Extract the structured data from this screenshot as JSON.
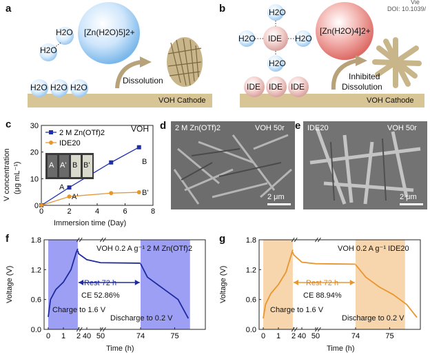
{
  "header": {
    "doi_fragment": "DOI: 10.1039/",
    "view_fragment": "Vie"
  },
  "panel_a": {
    "letter": "a",
    "molecules": [
      "H2O",
      "H2O",
      "H2O",
      "H2O",
      "H2O"
    ],
    "ion_label": "[Zn(H2O)5]2+",
    "process": "Dissolution",
    "substrate": "VOH Cathode"
  },
  "panel_b": {
    "letter": "b",
    "molecules": [
      "H2O",
      "H2O",
      "H2O",
      "H2O"
    ],
    "ide_center": "IDE",
    "ide_bottom": [
      "IDE",
      "IDE",
      "IDE"
    ],
    "ion_label": "[Zn(H2O)4]2+",
    "process_line1": "Inhibited",
    "process_line2": "Dissolution",
    "substrate": "VOH Cathode"
  },
  "panel_c": {
    "letter": "c",
    "tag": "VOH",
    "ylabel_line1": "V concentration",
    "ylabel_line2": "(μg mL⁻¹)",
    "xlabel": "Immersion time (Day)",
    "vial_labels": [
      "A",
      "A'",
      "B",
      "B'"
    ],
    "point_labels": [
      "A",
      "A'",
      "B",
      "B'"
    ]
  },
  "panel_d": {
    "letter": "d",
    "label_left": "2 M Zn(OTf)2",
    "label_right": "VOH 50r",
    "scale": "2 μm"
  },
  "panel_e": {
    "letter": "e",
    "label_left": "IDE20",
    "label_right": "VOH 50r",
    "scale": "2 μm"
  },
  "panel_f": {
    "letter": "f",
    "title": "VOH 0.2 A g⁻¹ 2 M Zn(OTf)2",
    "rest": "Rest 72 h",
    "ce": "CE 52.86%",
    "charge": "Charge to 1.6 V",
    "discharge": "Discharge to 0.2 V",
    "ylabel": "Voltage (V)",
    "xlabel": "Time (h)"
  },
  "panel_g": {
    "letter": "g",
    "title": "VOH 0.2 A g⁻¹ IDE20",
    "rest": "Rest 72 h",
    "ce": "CE 88.94%",
    "charge": "Charge to 1.6 V",
    "discharge": "Discharge to 0.2 V",
    "ylabel": "Voltage (V)",
    "xlabel": "Time (h)"
  },
  "chart_data": [
    {
      "type": "line",
      "panel": "c",
      "xlabel": "Immersion time (Day)",
      "ylabel": "V concentration (μg mL⁻¹)",
      "xlim": [
        0,
        8
      ],
      "ylim": [
        0,
        30
      ],
      "xticks": [
        0,
        2,
        4,
        6,
        8
      ],
      "yticks": [
        0,
        10,
        20,
        30
      ],
      "legend_position": "top-left",
      "series": [
        {
          "name": "2 M Zn(OTf)2",
          "color": "#1f2fa8",
          "marker": "square",
          "x": [
            0,
            2,
            5,
            7
          ],
          "y": [
            0,
            6.7,
            16.1,
            21.8
          ]
        },
        {
          "name": "IDE20",
          "color": "#e8962e",
          "marker": "circle",
          "x": [
            0,
            2,
            5,
            7
          ],
          "y": [
            0,
            3.3,
            4.6,
            4.9
          ]
        }
      ]
    },
    {
      "type": "line",
      "panel": "f",
      "xlabel": "Time (h)",
      "ylabel": "Voltage (V)",
      "ylim": [
        0.0,
        1.8
      ],
      "yticks": [
        "0.0",
        "0.6",
        "1.2",
        "1.8"
      ],
      "xtick_labels": [
        "0",
        "1",
        "2",
        "40",
        "50",
        "74",
        "75"
      ],
      "color": "#1e2aa0",
      "shade_color": "#8c8ef2",
      "segments": [
        {
          "phase": "charge",
          "time": [
            0,
            0.15,
            0.5,
            1.0,
            1.5,
            1.85,
            1.95
          ],
          "voltage": [
            0.25,
            0.6,
            0.8,
            0.95,
            1.2,
            1.55,
            1.62
          ]
        },
        {
          "phase": "rest",
          "time": [
            1.95,
            2.2,
            40,
            50,
            73.9
          ],
          "voltage": [
            1.58,
            1.52,
            1.4,
            1.34,
            1.33
          ]
        },
        {
          "phase": "discharge",
          "time": [
            74,
            74.2,
            74.5,
            74.8,
            75.1,
            75.4
          ],
          "voltage": [
            1.32,
            1.05,
            0.9,
            0.75,
            0.6,
            0.22
          ]
        }
      ]
    },
    {
      "type": "line",
      "panel": "g",
      "xlabel": "Time (h)",
      "ylabel": "Voltage (V)",
      "ylim": [
        0.0,
        1.8
      ],
      "yticks": [
        "0.0",
        "0.6",
        "1.2",
        "1.8"
      ],
      "xtick_labels": [
        "0",
        "1",
        "2",
        "40",
        "50",
        "74",
        "75"
      ],
      "color": "#e8962e",
      "shade_color": "#f6cfa0",
      "segments": [
        {
          "phase": "charge",
          "time": [
            0,
            0.15,
            0.5,
            1.0,
            1.5,
            1.85,
            1.95
          ],
          "voltage": [
            0.22,
            0.5,
            0.72,
            0.9,
            1.15,
            1.5,
            1.6
          ]
        },
        {
          "phase": "rest",
          "time": [
            1.95,
            2.2,
            40,
            50,
            73.9
          ],
          "voltage": [
            1.55,
            1.5,
            1.35,
            1.32,
            1.31
          ]
        },
        {
          "phase": "discharge",
          "time": [
            74,
            74.3,
            74.7,
            75.1,
            75.5,
            75.8
          ],
          "voltage": [
            1.3,
            1.05,
            0.85,
            0.7,
            0.5,
            0.24
          ]
        }
      ]
    }
  ]
}
